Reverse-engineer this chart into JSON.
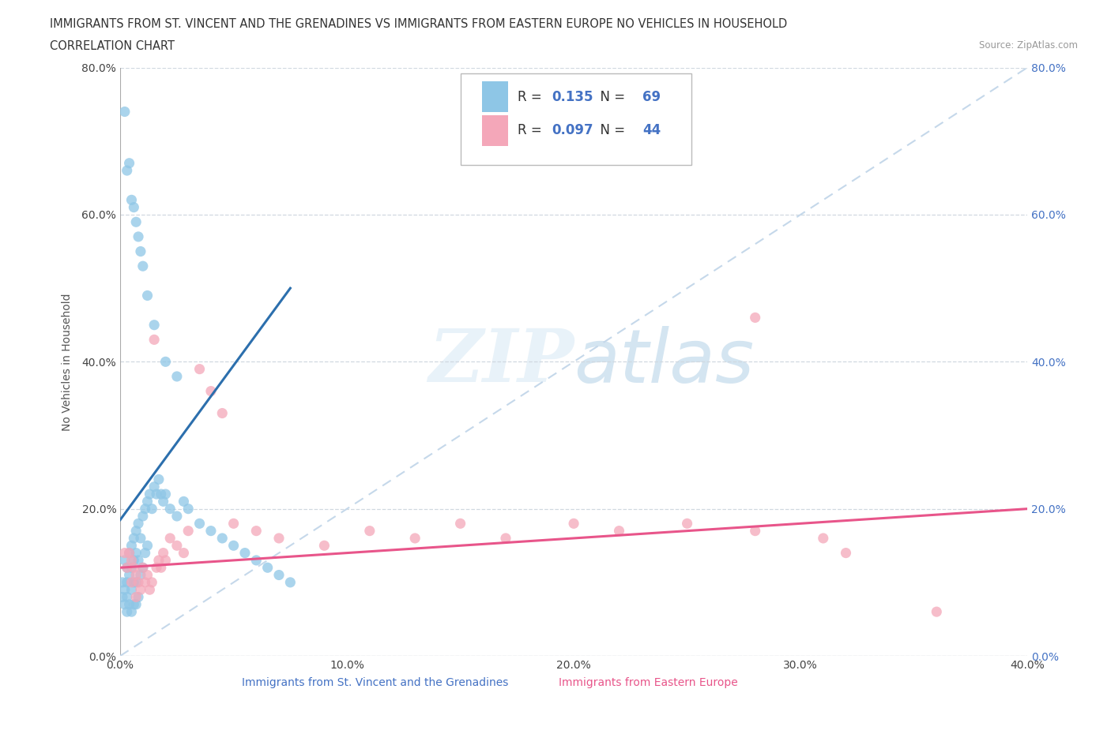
{
  "title_line1": "IMMIGRANTS FROM ST. VINCENT AND THE GRENADINES VS IMMIGRANTS FROM EASTERN EUROPE NO VEHICLES IN HOUSEHOLD",
  "title_line2": "CORRELATION CHART",
  "source_text": "Source: ZipAtlas.com",
  "ylabel": "No Vehicles in Household",
  "watermark": "ZIPatlas",
  "legend_label1": "Immigrants from St. Vincent and the Grenadines",
  "legend_label2": "Immigrants from Eastern Europe",
  "R1": "0.135",
  "N1": "69",
  "R2": "0.097",
  "N2": "44",
  "color1": "#8ec6e6",
  "color2": "#f4a7b9",
  "trendline1_color": "#2c6fad",
  "trendline2_color": "#e8558a",
  "diagonal_color": "#c5d8ea",
  "xmin": 0.0,
  "xmax": 0.4,
  "ymin": 0.0,
  "ymax": 0.8,
  "xticks": [
    0.0,
    0.1,
    0.2,
    0.3,
    0.4
  ],
  "yticks": [
    0.0,
    0.2,
    0.4,
    0.6,
    0.8
  ],
  "blue_x": [
    0.001,
    0.001,
    0.002,
    0.002,
    0.002,
    0.003,
    0.003,
    0.003,
    0.003,
    0.004,
    0.004,
    0.004,
    0.005,
    0.005,
    0.005,
    0.005,
    0.006,
    0.006,
    0.006,
    0.006,
    0.007,
    0.007,
    0.007,
    0.007,
    0.008,
    0.008,
    0.008,
    0.009,
    0.009,
    0.01,
    0.01,
    0.011,
    0.011,
    0.012,
    0.012,
    0.013,
    0.014,
    0.015,
    0.016,
    0.017,
    0.018,
    0.019,
    0.02,
    0.022,
    0.025,
    0.028,
    0.03,
    0.035,
    0.04,
    0.045,
    0.05,
    0.055,
    0.06,
    0.065,
    0.07,
    0.075,
    0.002,
    0.003,
    0.004,
    0.005,
    0.006,
    0.007,
    0.008,
    0.009,
    0.01,
    0.012,
    0.015,
    0.02,
    0.025
  ],
  "blue_y": [
    0.1,
    0.08,
    0.13,
    0.09,
    0.07,
    0.12,
    0.1,
    0.08,
    0.06,
    0.14,
    0.11,
    0.07,
    0.15,
    0.12,
    0.09,
    0.06,
    0.16,
    0.13,
    0.1,
    0.07,
    0.17,
    0.14,
    0.1,
    0.07,
    0.18,
    0.13,
    0.08,
    0.16,
    0.11,
    0.19,
    0.12,
    0.2,
    0.14,
    0.21,
    0.15,
    0.22,
    0.2,
    0.23,
    0.22,
    0.24,
    0.22,
    0.21,
    0.22,
    0.2,
    0.19,
    0.21,
    0.2,
    0.18,
    0.17,
    0.16,
    0.15,
    0.14,
    0.13,
    0.12,
    0.11,
    0.1,
    0.74,
    0.66,
    0.67,
    0.62,
    0.61,
    0.59,
    0.57,
    0.55,
    0.53,
    0.49,
    0.45,
    0.4,
    0.38
  ],
  "pink_x": [
    0.002,
    0.003,
    0.004,
    0.005,
    0.005,
    0.006,
    0.007,
    0.007,
    0.008,
    0.009,
    0.01,
    0.011,
    0.012,
    0.013,
    0.014,
    0.015,
    0.016,
    0.017,
    0.018,
    0.019,
    0.02,
    0.022,
    0.025,
    0.028,
    0.03,
    0.035,
    0.04,
    0.045,
    0.05,
    0.06,
    0.07,
    0.09,
    0.11,
    0.13,
    0.15,
    0.17,
    0.2,
    0.22,
    0.25,
    0.28,
    0.31,
    0.32,
    0.36,
    0.28
  ],
  "pink_y": [
    0.14,
    0.12,
    0.14,
    0.13,
    0.1,
    0.12,
    0.11,
    0.08,
    0.1,
    0.09,
    0.12,
    0.1,
    0.11,
    0.09,
    0.1,
    0.43,
    0.12,
    0.13,
    0.12,
    0.14,
    0.13,
    0.16,
    0.15,
    0.14,
    0.17,
    0.39,
    0.36,
    0.33,
    0.18,
    0.17,
    0.16,
    0.15,
    0.17,
    0.16,
    0.18,
    0.16,
    0.18,
    0.17,
    0.18,
    0.17,
    0.16,
    0.14,
    0.06,
    0.46
  ],
  "blue_trend_x0": 0.0,
  "blue_trend_x1": 0.075,
  "blue_trend_y0": 0.185,
  "blue_trend_y1": 0.5,
  "pink_trend_x0": 0.0,
  "pink_trend_x1": 0.4,
  "pink_trend_y0": 0.12,
  "pink_trend_y1": 0.2
}
